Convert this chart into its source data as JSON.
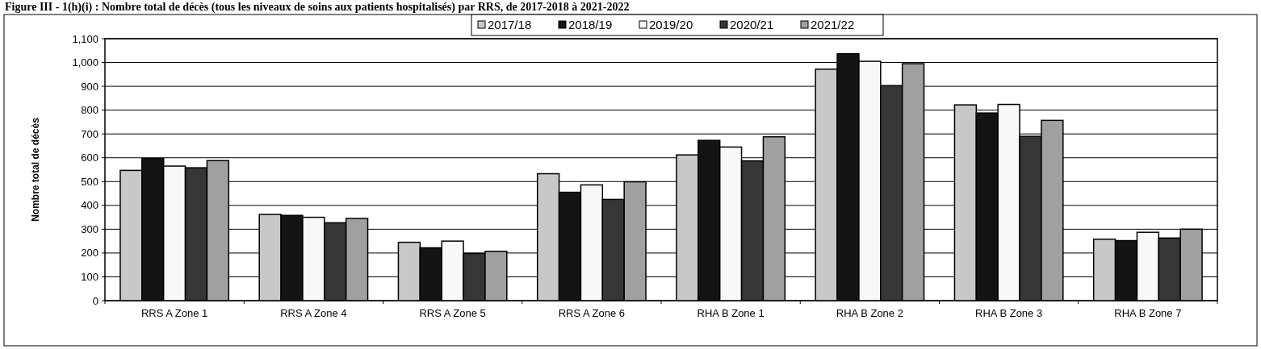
{
  "chart_data": {
    "type": "bar",
    "title": "Figure III - 1(h)(i) : Nombre total de décès (tous les niveaux de soins aux patients hospitalisés) par RRS, de 2017-2018 à 2021-2022",
    "ylabel": "Nombre total de décès",
    "categories": [
      "RRS A Zone 1",
      "RRS A Zone 4",
      "RRS A Zone 5",
      "RRS A Zone 6",
      "RHA B Zone 1",
      "RHA B Zone 2",
      "RHA B Zone 3",
      "RHA B Zone 7"
    ],
    "series": [
      {
        "name": "2017/18",
        "color": "#c8c8c8",
        "values": [
          547,
          362,
          245,
          533,
          612,
          972,
          822,
          258
        ]
      },
      {
        "name": "2018/19",
        "color": "#141414",
        "values": [
          597,
          358,
          222,
          455,
          673,
          1037,
          788,
          252
        ]
      },
      {
        "name": "2019/20",
        "color": "#f8f8f8",
        "values": [
          565,
          350,
          250,
          486,
          645,
          1005,
          824,
          287
        ]
      },
      {
        "name": "2020/21",
        "color": "#363636",
        "values": [
          558,
          327,
          198,
          425,
          587,
          903,
          690,
          263
        ]
      },
      {
        "name": "2021/22",
        "color": "#a0a0a0",
        "values": [
          588,
          345,
          207,
          499,
          688,
          995,
          757,
          300
        ]
      }
    ],
    "ylim": [
      0,
      1100
    ],
    "yticks": [
      {
        "value": 0,
        "label": "0"
      },
      {
        "value": 100,
        "label": "100"
      },
      {
        "value": 200,
        "label": "200"
      },
      {
        "value": 300,
        "label": "300"
      },
      {
        "value": 400,
        "label": "400"
      },
      {
        "value": 500,
        "label": "500"
      },
      {
        "value": 600,
        "label": "600"
      },
      {
        "value": 700,
        "label": "700"
      },
      {
        "value": 800,
        "label": "800"
      },
      {
        "value": 900,
        "label": "900"
      },
      {
        "value": 1000,
        "label": "1,000"
      },
      {
        "value": 1100,
        "label": "1,100"
      }
    ],
    "grid": "y",
    "legend": "top"
  }
}
